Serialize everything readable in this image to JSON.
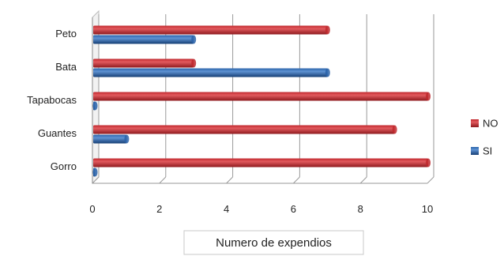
{
  "chart_data": {
    "type": "bar",
    "orientation": "horizontal",
    "categories": [
      "Peto",
      "Bata",
      "Tapabocas",
      "Guantes",
      "Gorro"
    ],
    "series": [
      {
        "name": "NO",
        "values": [
          7,
          3,
          10,
          9,
          10
        ],
        "color": "#c0282d"
      },
      {
        "name": "SI",
        "values": [
          3,
          7,
          0,
          1,
          0
        ],
        "color": "#2a63a9"
      }
    ],
    "xlabel": "Numero de expendios",
    "xlim": [
      0,
      10
    ],
    "xticks": [
      0,
      2,
      4,
      6,
      8,
      10
    ],
    "grid": true,
    "legend_position": "right",
    "style": "3d-cylinder"
  }
}
